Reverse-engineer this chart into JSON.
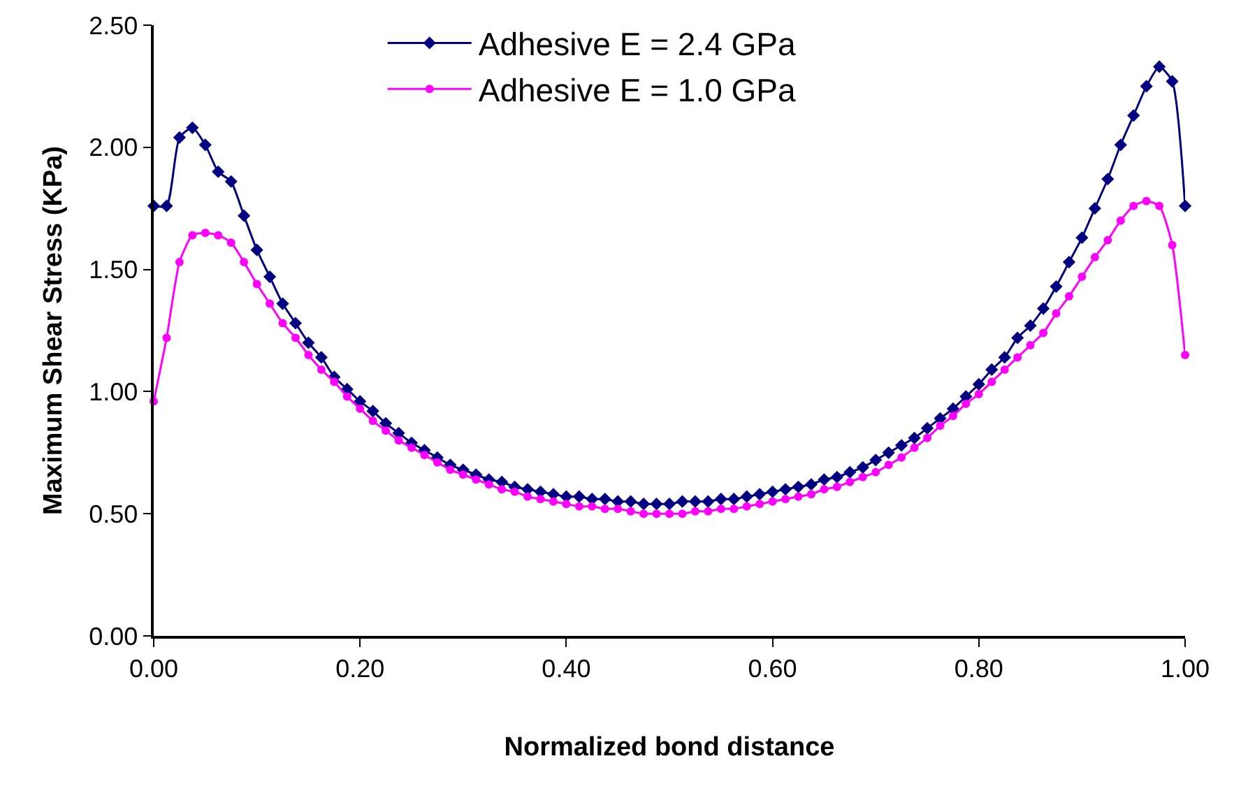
{
  "chart_data": {
    "type": "line",
    "xlabel": "Normalized bond distance",
    "ylabel": "Maximum Shear Stress (KPa)",
    "x": [
      0,
      0.0125,
      0.025,
      0.0375,
      0.05,
      0.0625,
      0.075,
      0.0875,
      0.1,
      0.1125,
      0.125,
      0.1375,
      0.15,
      0.1625,
      0.175,
      0.1875,
      0.2,
      0.2125,
      0.225,
      0.2375,
      0.25,
      0.2625,
      0.275,
      0.2875,
      0.3,
      0.3125,
      0.325,
      0.3375,
      0.35,
      0.3625,
      0.375,
      0.3875,
      0.4,
      0.4125,
      0.425,
      0.4375,
      0.45,
      0.4625,
      0.475,
      0.4875,
      0.5,
      0.5125,
      0.525,
      0.5375,
      0.55,
      0.5625,
      0.575,
      0.5875,
      0.6,
      0.6125,
      0.625,
      0.6375,
      0.65,
      0.6625,
      0.675,
      0.6875,
      0.7,
      0.7125,
      0.725,
      0.7375,
      0.75,
      0.7625,
      0.775,
      0.7875,
      0.8,
      0.8125,
      0.825,
      0.8375,
      0.85,
      0.8625,
      0.875,
      0.8875,
      0.9,
      0.9125,
      0.925,
      0.9375,
      0.95,
      0.9625,
      0.975,
      0.9875,
      1
    ],
    "series": [
      {
        "name": "Adhesive E = 2.4 GPa",
        "color": "#000080",
        "marker": "diamond",
        "values": [
          1.76,
          1.76,
          2.04,
          2.08,
          2.01,
          1.9,
          1.86,
          1.72,
          1.58,
          1.47,
          1.36,
          1.28,
          1.2,
          1.14,
          1.06,
          1.01,
          0.96,
          0.92,
          0.87,
          0.83,
          0.79,
          0.76,
          0.73,
          0.7,
          0.68,
          0.66,
          0.64,
          0.63,
          0.61,
          0.6,
          0.59,
          0.58,
          0.57,
          0.57,
          0.56,
          0.56,
          0.55,
          0.55,
          0.54,
          0.54,
          0.54,
          0.55,
          0.55,
          0.55,
          0.56,
          0.56,
          0.57,
          0.58,
          0.59,
          0.6,
          0.61,
          0.62,
          0.64,
          0.65,
          0.67,
          0.69,
          0.72,
          0.75,
          0.78,
          0.81,
          0.85,
          0.89,
          0.93,
          0.98,
          1.03,
          1.09,
          1.14,
          1.22,
          1.27,
          1.34,
          1.43,
          1.53,
          1.63,
          1.75,
          1.87,
          2.01,
          2.13,
          2.25,
          2.33,
          2.27,
          1.76
        ]
      },
      {
        "name": "Adhesive E = 1.0 GPa",
        "color": "#ff00ff",
        "marker": "circle",
        "values": [
          0.96,
          1.22,
          1.53,
          1.64,
          1.65,
          1.64,
          1.61,
          1.53,
          1.44,
          1.36,
          1.28,
          1.22,
          1.15,
          1.09,
          1.04,
          0.98,
          0.93,
          0.88,
          0.84,
          0.8,
          0.77,
          0.74,
          0.71,
          0.68,
          0.66,
          0.64,
          0.62,
          0.6,
          0.59,
          0.57,
          0.56,
          0.55,
          0.54,
          0.53,
          0.53,
          0.52,
          0.52,
          0.51,
          0.5,
          0.5,
          0.5,
          0.5,
          0.51,
          0.51,
          0.52,
          0.52,
          0.53,
          0.54,
          0.55,
          0.56,
          0.57,
          0.58,
          0.6,
          0.61,
          0.63,
          0.65,
          0.67,
          0.7,
          0.73,
          0.77,
          0.81,
          0.86,
          0.9,
          0.95,
          0.99,
          1.04,
          1.09,
          1.14,
          1.19,
          1.24,
          1.32,
          1.39,
          1.47,
          1.55,
          1.62,
          1.7,
          1.76,
          1.78,
          1.76,
          1.6,
          1.15
        ]
      }
    ],
    "xlim": [
      0,
      1
    ],
    "xticks": [
      {
        "value": 0,
        "label": "0.00"
      },
      {
        "value": 0.2,
        "label": "0.20"
      },
      {
        "value": 0.4,
        "label": "0.40"
      },
      {
        "value": 0.6,
        "label": "0.60"
      },
      {
        "value": 0.8,
        "label": "0.80"
      },
      {
        "value": 1,
        "label": "1.00"
      }
    ],
    "ylim": [
      0,
      2.5
    ],
    "yticks": [
      {
        "value": 0,
        "label": "0.00"
      },
      {
        "value": 0.5,
        "label": "0.50"
      },
      {
        "value": 1,
        "label": "1.00"
      },
      {
        "value": 1.5,
        "label": "1.50"
      },
      {
        "value": 2,
        "label": "2.00"
      },
      {
        "value": 2.5,
        "label": "2.50"
      }
    ],
    "legend": "top",
    "line_style": "solid"
  }
}
